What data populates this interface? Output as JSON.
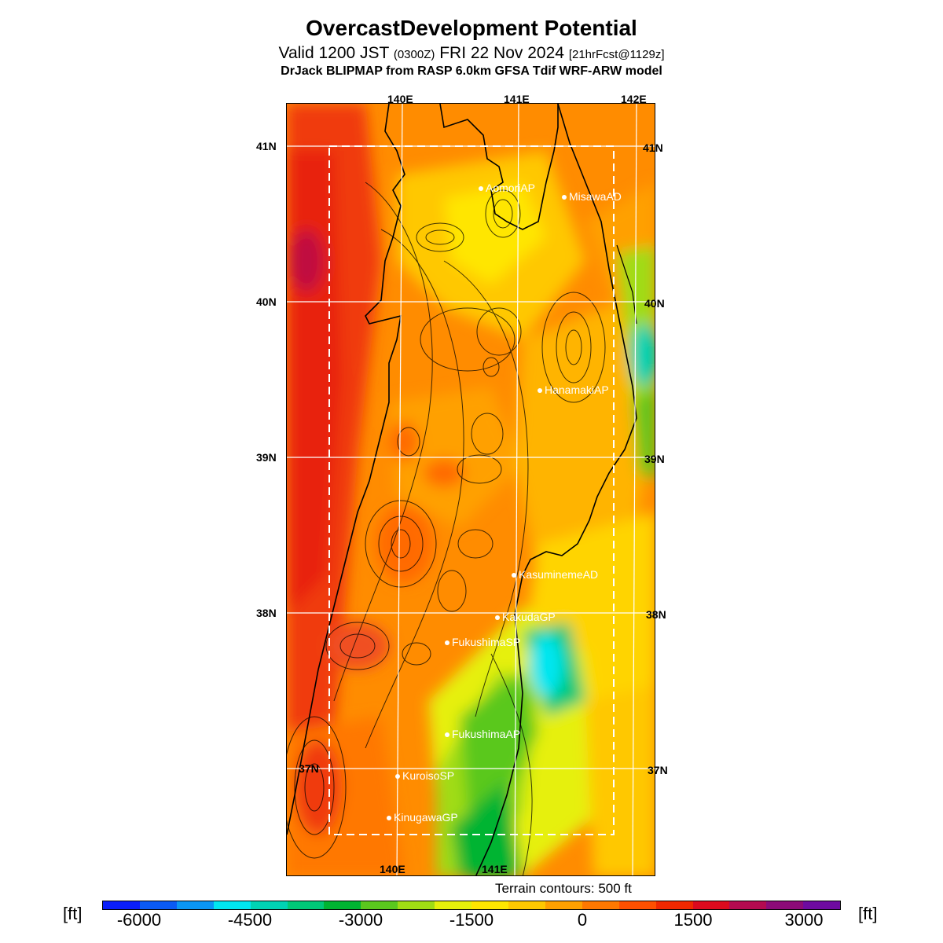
{
  "header": {
    "title": "OvercastDevelopment Potential",
    "valid_prefix": "Valid 1200 JST",
    "valid_utc": "(0300Z)",
    "valid_date": "FRI 22 Nov 2024",
    "forecast_info": "[21hrFcst@1129z]",
    "model_line": "DrJack BLIPMAP from RASP 6.0km GFSA Tdif WRF-ARW model"
  },
  "map": {
    "lon_labels_top": [
      "140E",
      "141E",
      "142E"
    ],
    "lon_labels_bottom": [
      "140E",
      "141E"
    ],
    "lat_labels_left": [
      "41N",
      "40N",
      "39N",
      "38N",
      "37N"
    ],
    "lat_labels_right": [
      "41N",
      "40N",
      "39N",
      "38N",
      "37N"
    ],
    "stations": [
      "AomoriAP",
      "MisawaAD",
      "HanamakiAP",
      "KasuminemeAD",
      "KakudaGP",
      "FukushimaSP",
      "FukushimaAP",
      "KuroisoSP",
      "KinugawaGP"
    ],
    "terrain_note": "Terrain contours: 500 ft"
  },
  "colorbar": {
    "unit": "[ft]",
    "tick_labels": [
      "-6000",
      "-4500",
      "-3000",
      "-1500",
      "0",
      "1500",
      "3000"
    ],
    "colors": [
      "#0a1efa",
      "#0a5af5",
      "#0a96f5",
      "#00e6f0",
      "#00d2b4",
      "#00c878",
      "#00b432",
      "#5ac81e",
      "#a0dc14",
      "#e6f00a",
      "#ffe600",
      "#ffc800",
      "#ffa000",
      "#ff7800",
      "#ff5000",
      "#f02800",
      "#dc0a1e",
      "#b40a50",
      "#8c0a78",
      "#6e0aa0"
    ]
  }
}
